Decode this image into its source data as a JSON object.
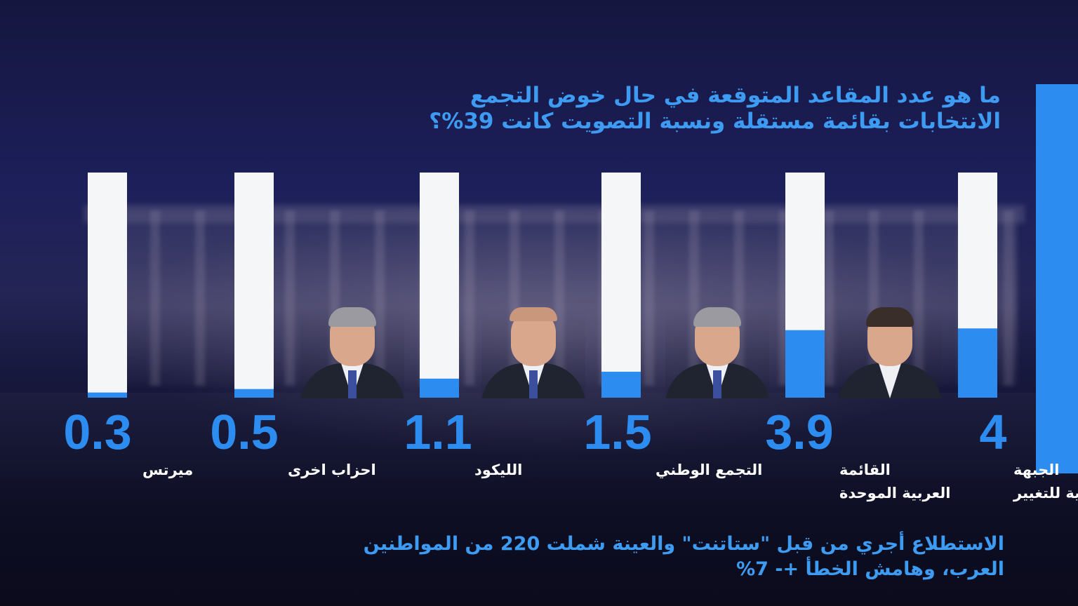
{
  "header": {
    "question_line1": "ما هو عدد المقاعد المتوقعة في حال خوض التجمع",
    "question_line2": "الانتخابات بقائمة مستقلة ونسبة التصويت كانت 39%؟"
  },
  "footnote": {
    "line1": "الاستطلاع أجري من قبل \"ستاتنت\" والعينة شملت 220 من المواطنين",
    "line2": "العرب، وهامش الخطأ +- 7%"
  },
  "colors": {
    "accent": "#2d8cf0",
    "bar_background": "#f5f6f8",
    "label_text": "#ffffff"
  },
  "chart_data": {
    "type": "bar",
    "title": "",
    "xlabel": "",
    "ylabel": "",
    "ylim": [
      0,
      13
    ],
    "grid": false,
    "categories": [
      [
        "الجبهة",
        "والعربية للتغيير"
      ],
      [
        "القائمة",
        "العربية الموحدة"
      ],
      [
        "التجمع الوطني"
      ],
      [
        "الليكود"
      ],
      [
        "احزاب اخرى"
      ],
      [
        "ميرتس"
      ]
    ],
    "values": [
      4,
      3.9,
      1.5,
      1.1,
      0.5,
      0.3
    ],
    "value_labels": [
      "4",
      "3.9",
      "1.5",
      "1.1",
      "0.5",
      "0.3"
    ]
  },
  "portraits": [
    {
      "name_icon": "politician-portrait-icon",
      "hair": "dark"
    },
    {
      "name_icon": "politician-portrait-icon",
      "hair": "gray"
    },
    {
      "name_icon": "politician-portrait-icon",
      "hair": "bald"
    },
    {
      "name_icon": "politician-portrait-icon",
      "hair": "gray"
    }
  ]
}
